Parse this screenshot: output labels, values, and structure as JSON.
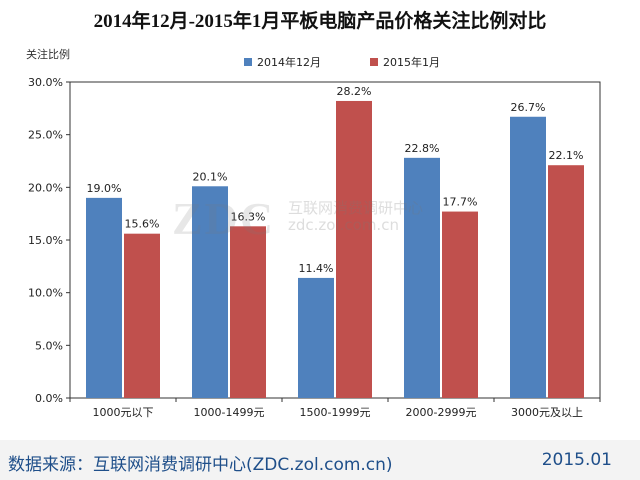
{
  "header": {
    "title": "2014年12月-2015年1月平板电脑产品价格关注比例对比"
  },
  "footer": {
    "source": "数据来源：互联网消费调研中心(ZDC.zol.com.cn)",
    "date": "2015.01"
  },
  "watermark": {
    "logo": "ZDC",
    "line1": "互联网消费调研中心",
    "line2": "zdc.zol.com.cn"
  },
  "colors": {
    "series1": "#4f81bd",
    "series2": "#c0504d"
  },
  "chart_data": {
    "type": "bar",
    "title": "2014年12月-2015年1月平板电脑产品价格关注比例对比",
    "ylabel": "关注比例",
    "xlabel": "",
    "categories": [
      "1000元以下",
      "1000-1499元",
      "1500-1999元",
      "2000-2999元",
      "3000元及以上"
    ],
    "series": [
      {
        "name": "2014年12月",
        "values": [
          19.0,
          20.1,
          11.4,
          22.8,
          26.7
        ],
        "labels": [
          "19.0%",
          "20.1%",
          "11.4%",
          "22.8%",
          "26.7%"
        ]
      },
      {
        "name": "2015年1月",
        "values": [
          15.6,
          16.3,
          28.2,
          17.7,
          22.1
        ],
        "labels": [
          "15.6%",
          "16.3%",
          "28.2%",
          "17.7%",
          "22.1%"
        ]
      }
    ],
    "ylim": [
      0,
      30
    ],
    "yticks": [
      "0.0%",
      "5.0%",
      "10.0%",
      "15.0%",
      "20.0%",
      "25.0%",
      "30.0%"
    ],
    "grid": false,
    "legend_position": "top"
  }
}
